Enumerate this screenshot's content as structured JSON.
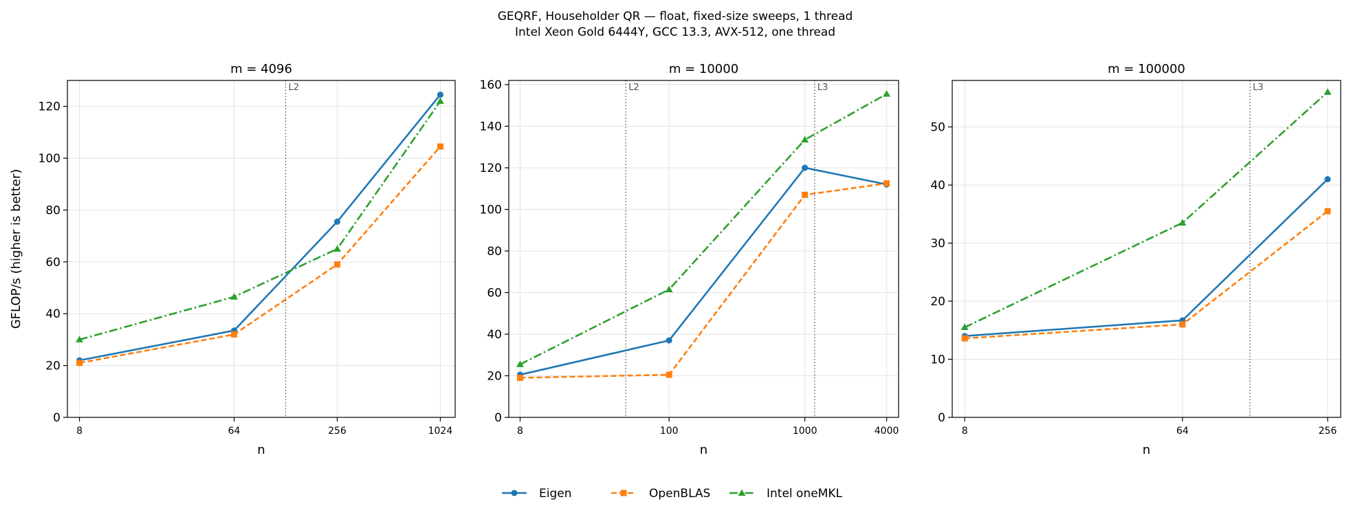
{
  "suptitle": {
    "line1": "GEQRF, Householder QR — float, fixed-size sweeps, 1 thread",
    "line2": "Intel Xeon Gold 6444Y, GCC 13.3, AVX-512, one thread"
  },
  "colors": {
    "Eigen": "#1f77b4",
    "OpenBLAS": "#ff7f0e",
    "Intel oneMKL": "#2ca02c"
  },
  "legend": {
    "placement": "bottom-center",
    "items": [
      {
        "name": "Eigen",
        "marker": "circle",
        "linestyle": "solid"
      },
      {
        "name": "OpenBLAS",
        "marker": "square",
        "linestyle": "dashed"
      },
      {
        "name": "Intel oneMKL",
        "marker": "triangle",
        "linestyle": "dashdot"
      }
    ]
  },
  "chart_data": [
    {
      "type": "line",
      "title": "m = 4096",
      "xlabel": "n",
      "ylabel": "GFLOP/s (higher is better)",
      "xscale": "log",
      "x": [
        8,
        64,
        256,
        1024
      ],
      "xticks": [
        8,
        64,
        256,
        1024
      ],
      "xlim": [
        6.8,
        1250
      ],
      "yticks": [
        0,
        20,
        40,
        60,
        80,
        100,
        120
      ],
      "ylim": [
        0,
        130
      ],
      "grid": true,
      "cache_lines": [
        {
          "label": "L2",
          "x": 128
        }
      ],
      "series": [
        {
          "name": "Eigen",
          "values": [
            22,
            33.5,
            75.5,
            124.5
          ]
        },
        {
          "name": "OpenBLAS",
          "values": [
            21,
            32,
            59,
            104.5
          ]
        },
        {
          "name": "Intel oneMKL",
          "values": [
            30,
            46.5,
            65,
            122
          ]
        }
      ]
    },
    {
      "type": "line",
      "title": "m = 10000",
      "xlabel": "n",
      "ylabel": "",
      "xscale": "log",
      "x": [
        8,
        100,
        1000,
        4000
      ],
      "xticks": [
        8,
        100,
        1000,
        4000
      ],
      "xlim": [
        6.6,
        4900
      ],
      "yticks": [
        0,
        20,
        40,
        60,
        80,
        100,
        120,
        140,
        160
      ],
      "ylim": [
        0,
        162
      ],
      "grid": true,
      "cache_lines": [
        {
          "label": "L2",
          "x": 48
        },
        {
          "label": "L3",
          "x": 1180
        }
      ],
      "series": [
        {
          "name": "Eigen",
          "values": [
            20.5,
            37,
            120,
            112
          ]
        },
        {
          "name": "OpenBLAS",
          "values": [
            19,
            20.5,
            107,
            112.5
          ]
        },
        {
          "name": "Intel oneMKL",
          "values": [
            25.5,
            61.5,
            133.5,
            155.5
          ]
        }
      ]
    },
    {
      "type": "line",
      "title": "m = 100000",
      "xlabel": "n",
      "ylabel": "",
      "xscale": "log",
      "x": [
        8,
        64,
        256
      ],
      "xticks": [
        8,
        64,
        256
      ],
      "xlim": [
        7.1,
        290
      ],
      "yticks": [
        0,
        10,
        20,
        30,
        40,
        50
      ],
      "ylim": [
        0,
        58
      ],
      "grid": true,
      "cache_lines": [
        {
          "label": "L3",
          "x": 122
        }
      ],
      "series": [
        {
          "name": "Eigen",
          "values": [
            14,
            16.7,
            41
          ]
        },
        {
          "name": "OpenBLAS",
          "values": [
            13.6,
            16,
            35.5
          ]
        },
        {
          "name": "Intel oneMKL",
          "values": [
            15.5,
            33.5,
            56
          ]
        }
      ]
    }
  ]
}
